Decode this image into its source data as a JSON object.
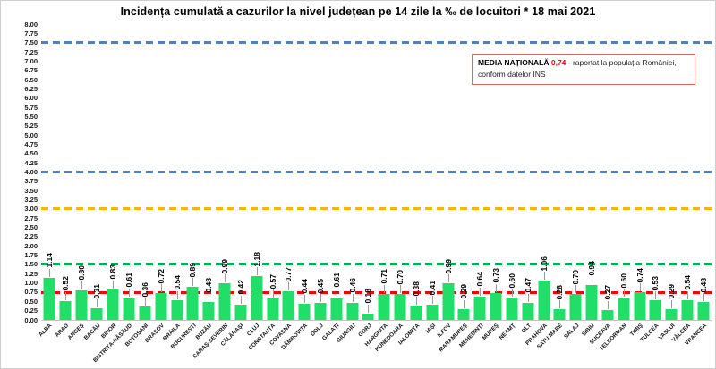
{
  "title": "Incidența cumulată a cazurilor la nivel județean pe 14 zile la ‰ de locuitori *  18 mai 2021",
  "annotation": {
    "label": "MEDIA NAȚIONALĂ",
    "value": "0,74",
    "text_after": "- raportat la populația României,",
    "text_line2": "conform datelor INS"
  },
  "colors": {
    "bar": "#21de69",
    "blue_line": "#4f81bd",
    "orange_line": "#ffb400",
    "green_line": "#00b050",
    "red_line": "#ff0000",
    "national_value": "#ff0000",
    "box_border": "#e06666",
    "leader": "#9b9b9b"
  },
  "chart_data": {
    "type": "bar",
    "title": "Incidența cumulată a cazurilor la nivel județean pe 14 zile la ‰ de locuitori *  18 mai 2021",
    "xlabel": "",
    "ylabel": "",
    "ylim": [
      0,
      8
    ],
    "grid": false,
    "legend": "none",
    "national_average": 0.74,
    "ytick_labels": [
      "8.00",
      "7.75",
      "7.50",
      "7.25",
      "7.00",
      "6.75",
      "6.50",
      "6.25",
      "6.00",
      "5.75",
      "5.50",
      "5.25",
      "5.00",
      "4.75",
      "4.50",
      "4.25",
      "4.00",
      "3.75",
      "3.50",
      "3.25",
      "3.00",
      "2.75",
      "2.50",
      "2.25",
      "2.00",
      "1.75",
      "1.50",
      "1.25",
      "1.00",
      "0.75",
      "0.50",
      "0.25",
      "0.00"
    ],
    "categories": [
      "ALBA",
      "ARAD",
      "ARGEȘ",
      "BACĂU",
      "BIHOR",
      "BISTRIȚA-NĂSĂUD",
      "BOTOȘANI",
      "BRAȘOV",
      "BRĂILA",
      "BUCUREȘTI",
      "BUZĂU",
      "CARAȘ-SEVERIN",
      "CĂLĂRAȘI",
      "CLUJ",
      "CONSTANȚA",
      "COVASNA",
      "DÂMBOVIȚA",
      "DOLJ",
      "GALAȚI",
      "GIURGIU",
      "GORJ",
      "HARGHITA",
      "HUNEDOARA",
      "IALOMIȚA",
      "IAȘI",
      "ILFOV",
      "MARAMUREȘ",
      "MEHEDINȚI",
      "MUREȘ",
      "NEAMȚ",
      "OLT",
      "PRAHOVA",
      "SATU MARE",
      "SĂLAJ",
      "SIBIU",
      "SUCEAVA",
      "TELEORMAN",
      "TIMIȘ",
      "TULCEA",
      "VASLUI",
      "VÂLCEA",
      "VRANCEA"
    ],
    "values": [
      1.14,
      0.52,
      0.8,
      0.31,
      0.83,
      0.61,
      0.36,
      0.72,
      0.54,
      0.89,
      0.48,
      0.99,
      0.42,
      1.18,
      0.57,
      0.77,
      0.44,
      0.45,
      0.61,
      0.46,
      0.18,
      0.71,
      0.7,
      0.38,
      0.41,
      0.99,
      0.29,
      0.64,
      0.73,
      0.6,
      0.47,
      1.06,
      0.28,
      0.7,
      0.94,
      0.27,
      0.6,
      0.74,
      0.53,
      0.29,
      0.54,
      0.48
    ],
    "reference_lines": [
      {
        "value": 7.5,
        "color": "#4f81bd",
        "style": "dashed",
        "name": "threshold-7.5"
      },
      {
        "value": 4.0,
        "color": "#4f81bd",
        "style": "dashed",
        "name": "threshold-4.0"
      },
      {
        "value": 3.0,
        "color": "#ffb400",
        "style": "dashed",
        "name": "threshold-3.0"
      },
      {
        "value": 1.5,
        "color": "#00b050",
        "style": "dashed",
        "name": "threshold-1.5"
      },
      {
        "value": 0.74,
        "color": "#ff0000",
        "style": "dashed",
        "name": "national-average"
      }
    ]
  }
}
